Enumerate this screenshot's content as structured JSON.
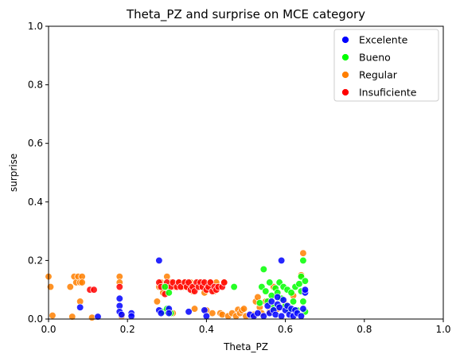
{
  "chart_data": {
    "type": "scatter",
    "title": "Theta_PZ and surprise on MCE category",
    "xlabel": "Theta_PZ",
    "ylabel": "surprise",
    "xlim": [
      0,
      1
    ],
    "ylim": [
      0,
      1
    ],
    "xticks": [
      "0.0",
      "0.2",
      "0.4",
      "0.6",
      "0.8",
      "1.0"
    ],
    "yticks": [
      "0.0",
      "0.2",
      "0.4",
      "0.6",
      "0.8",
      "1.0"
    ],
    "grid": false,
    "legend_position": "top-right",
    "series": [
      {
        "name": "Regular",
        "color": "#ff7f00",
        "points": [
          [
            0.0,
            0.145
          ],
          [
            0.005,
            0.11
          ],
          [
            0.01,
            0.012
          ],
          [
            0.055,
            0.11
          ],
          [
            0.06,
            0.008
          ],
          [
            0.065,
            0.145
          ],
          [
            0.07,
            0.125
          ],
          [
            0.075,
            0.145
          ],
          [
            0.08,
            0.125
          ],
          [
            0.08,
            0.06
          ],
          [
            0.085,
            0.145
          ],
          [
            0.085,
            0.125
          ],
          [
            0.11,
            0.005
          ],
          [
            0.18,
            0.145
          ],
          [
            0.18,
            0.125
          ],
          [
            0.185,
            0.01
          ],
          [
            0.275,
            0.06
          ],
          [
            0.28,
            0.11
          ],
          [
            0.285,
            0.125
          ],
          [
            0.29,
            0.09
          ],
          [
            0.3,
            0.145
          ],
          [
            0.3,
            0.11
          ],
          [
            0.31,
            0.125
          ],
          [
            0.315,
            0.02
          ],
          [
            0.32,
            0.11
          ],
          [
            0.33,
            0.125
          ],
          [
            0.34,
            0.11
          ],
          [
            0.345,
            0.125
          ],
          [
            0.35,
            0.11
          ],
          [
            0.36,
            0.125
          ],
          [
            0.365,
            0.095
          ],
          [
            0.37,
            0.11
          ],
          [
            0.37,
            0.035
          ],
          [
            0.38,
            0.125
          ],
          [
            0.385,
            0.11
          ],
          [
            0.39,
            0.125
          ],
          [
            0.395,
            0.09
          ],
          [
            0.4,
            0.03
          ],
          [
            0.405,
            0.11
          ],
          [
            0.41,
            0.125
          ],
          [
            0.415,
            0.02
          ],
          [
            0.42,
            0.095
          ],
          [
            0.425,
            0.125
          ],
          [
            0.43,
            0.11
          ],
          [
            0.435,
            0.02
          ],
          [
            0.44,
            0.015
          ],
          [
            0.445,
            0.125
          ],
          [
            0.455,
            0.01
          ],
          [
            0.465,
            0.02
          ],
          [
            0.475,
            0.01
          ],
          [
            0.48,
            0.032
          ],
          [
            0.485,
            0.02
          ],
          [
            0.49,
            0.03
          ],
          [
            0.495,
            0.035
          ],
          [
            0.5,
            0.01
          ],
          [
            0.52,
            0.015
          ],
          [
            0.525,
            0.06
          ],
          [
            0.53,
            0.075
          ],
          [
            0.535,
            0.04
          ],
          [
            0.54,
            0.02
          ],
          [
            0.55,
            0.06
          ],
          [
            0.56,
            0.025
          ],
          [
            0.57,
            0.11
          ],
          [
            0.58,
            0.035
          ],
          [
            0.6,
            0.05
          ],
          [
            0.62,
            0.08
          ],
          [
            0.64,
            0.15
          ],
          [
            0.645,
            0.225
          ]
        ]
      },
      {
        "name": "Insuficiente",
        "color": "#ff0000",
        "points": [
          [
            0.105,
            0.1
          ],
          [
            0.115,
            0.1
          ],
          [
            0.18,
            0.11
          ],
          [
            0.28,
            0.125
          ],
          [
            0.285,
            0.11
          ],
          [
            0.295,
            0.085
          ],
          [
            0.3,
            0.125
          ],
          [
            0.31,
            0.11
          ],
          [
            0.315,
            0.125
          ],
          [
            0.325,
            0.11
          ],
          [
            0.33,
            0.125
          ],
          [
            0.335,
            0.11
          ],
          [
            0.345,
            0.125
          ],
          [
            0.35,
            0.11
          ],
          [
            0.355,
            0.125
          ],
          [
            0.36,
            0.1
          ],
          [
            0.365,
            0.11
          ],
          [
            0.37,
            0.095
          ],
          [
            0.375,
            0.125
          ],
          [
            0.38,
            0.11
          ],
          [
            0.385,
            0.125
          ],
          [
            0.39,
            0.11
          ],
          [
            0.395,
            0.125
          ],
          [
            0.4,
            0.1
          ],
          [
            0.405,
            0.11
          ],
          [
            0.41,
            0.125
          ],
          [
            0.415,
            0.095
          ],
          [
            0.42,
            0.11
          ],
          [
            0.425,
            0.1
          ],
          [
            0.43,
            0.11
          ],
          [
            0.44,
            0.11
          ],
          [
            0.445,
            0.125
          ]
        ]
      },
      {
        "name": "Bueno",
        "color": "#00ff00",
        "points": [
          [
            0.29,
            0.025
          ],
          [
            0.295,
            0.11
          ],
          [
            0.3,
            0.035
          ],
          [
            0.305,
            0.09
          ],
          [
            0.31,
            0.02
          ],
          [
            0.47,
            0.11
          ],
          [
            0.535,
            0.055
          ],
          [
            0.54,
            0.11
          ],
          [
            0.545,
            0.17
          ],
          [
            0.55,
            0.095
          ],
          [
            0.555,
            0.06
          ],
          [
            0.56,
            0.125
          ],
          [
            0.565,
            0.08
          ],
          [
            0.57,
            0.04
          ],
          [
            0.575,
            0.105
          ],
          [
            0.58,
            0.09
          ],
          [
            0.585,
            0.125
          ],
          [
            0.59,
            0.07
          ],
          [
            0.595,
            0.11
          ],
          [
            0.6,
            0.045
          ],
          [
            0.605,
            0.1
          ],
          [
            0.61,
            0.03
          ],
          [
            0.615,
            0.09
          ],
          [
            0.62,
            0.06
          ],
          [
            0.625,
            0.11
          ],
          [
            0.63,
            0.03
          ],
          [
            0.635,
            0.12
          ],
          [
            0.64,
            0.095
          ],
          [
            0.64,
            0.145
          ],
          [
            0.645,
            0.06
          ],
          [
            0.645,
            0.2
          ],
          [
            0.65,
            0.13
          ],
          [
            0.65,
            0.025
          ]
        ]
      },
      {
        "name": "Excelente",
        "color": "#0000ff",
        "points": [
          [
            0.08,
            0.04
          ],
          [
            0.125,
            0.008
          ],
          [
            0.18,
            0.07
          ],
          [
            0.18,
            0.045
          ],
          [
            0.18,
            0.025
          ],
          [
            0.185,
            0.015
          ],
          [
            0.21,
            0.02
          ],
          [
            0.21,
            0.01
          ],
          [
            0.28,
            0.2
          ],
          [
            0.28,
            0.03
          ],
          [
            0.285,
            0.02
          ],
          [
            0.305,
            0.035
          ],
          [
            0.305,
            0.02
          ],
          [
            0.355,
            0.025
          ],
          [
            0.395,
            0.03
          ],
          [
            0.4,
            0.01
          ],
          [
            0.51,
            0.015
          ],
          [
            0.52,
            0.01
          ],
          [
            0.53,
            0.02
          ],
          [
            0.545,
            0.01
          ],
          [
            0.555,
            0.045
          ],
          [
            0.56,
            0.02
          ],
          [
            0.565,
            0.06
          ],
          [
            0.57,
            0.03
          ],
          [
            0.575,
            0.015
          ],
          [
            0.58,
            0.05
          ],
          [
            0.58,
            0.075
          ],
          [
            0.585,
            0.04
          ],
          [
            0.59,
            0.01
          ],
          [
            0.59,
            0.2
          ],
          [
            0.595,
            0.065
          ],
          [
            0.6,
            0.03
          ],
          [
            0.605,
            0.045
          ],
          [
            0.61,
            0.015
          ],
          [
            0.615,
            0.035
          ],
          [
            0.62,
            0.01
          ],
          [
            0.625,
            0.03
          ],
          [
            0.63,
            0.02
          ],
          [
            0.64,
            0.01
          ],
          [
            0.645,
            0.035
          ],
          [
            0.65,
            0.09
          ],
          [
            0.65,
            0.1
          ]
        ]
      }
    ],
    "legend_order": [
      "Excelente",
      "Bueno",
      "Regular",
      "Insuficiente"
    ]
  }
}
